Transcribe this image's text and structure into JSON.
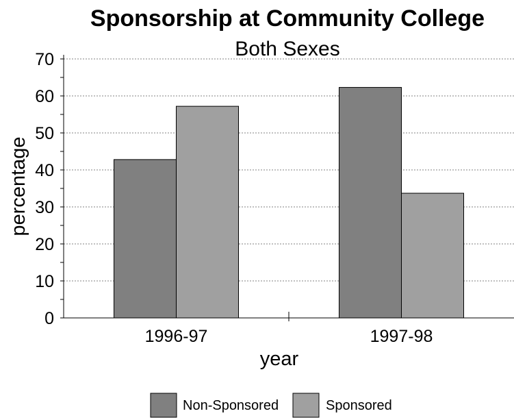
{
  "chart_data": {
    "type": "bar",
    "title": "Sponsorship at Community College",
    "subtitle": "Both Sexes",
    "xlabel": "year",
    "ylabel": "percentage",
    "categories": [
      "1996-97",
      "1997-98"
    ],
    "series": [
      {
        "name": "Non-Sponsored",
        "values": [
          42.8,
          62.3
        ],
        "color": "#808080"
      },
      {
        "name": "Sponsored",
        "values": [
          57.2,
          33.7
        ],
        "color": "#a0a0a0"
      }
    ],
    "ylim": [
      0,
      70
    ],
    "yticks": [
      0,
      10,
      20,
      30,
      40,
      50,
      60,
      70
    ],
    "grid": "horizontal dashed",
    "legend_position": "bottom"
  }
}
